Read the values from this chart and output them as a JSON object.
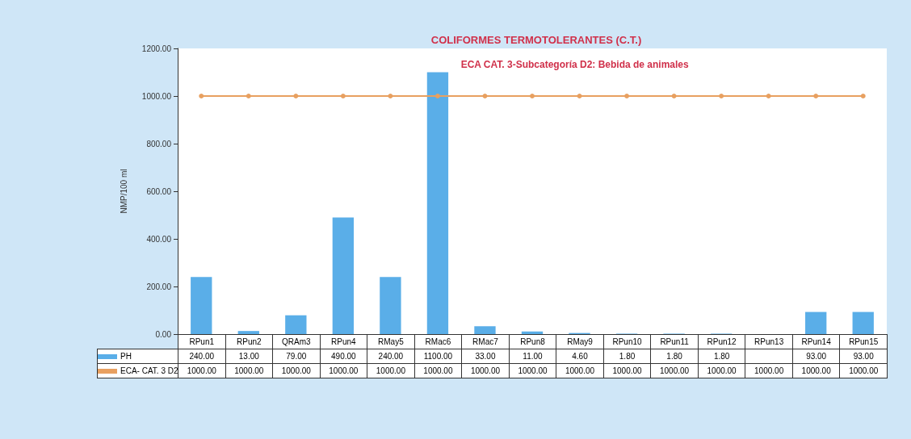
{
  "chart_data": {
    "type": "bar",
    "title": "COLIFORMES TERMOTOLERANTES (C.T.)",
    "ylabel": "NMP/100 ml",
    "categories": [
      "RPun1",
      "RPun2",
      "QRAm3",
      "RPun4",
      "RMay5",
      "RMac6",
      "RMac7",
      "RPun8",
      "RMay9",
      "RPun10",
      "RPun11",
      "RPun12",
      "RPun13",
      "RPun14",
      "RPun15"
    ],
    "series": [
      {
        "name": "PH",
        "color": "#5aaee8",
        "values": [
          240,
          13,
          79,
          490,
          240,
          1100,
          33,
          11,
          4.6,
          1.8,
          1.8,
          1.8,
          null,
          93,
          93
        ],
        "value_labels": [
          "240.00",
          "13.00",
          "79.00",
          "490.00",
          "240.00",
          "1100.00",
          "33.00",
          "11.00",
          "4.60",
          "1.80",
          "1.80",
          "1.80",
          null,
          "93.00",
          "93.00"
        ]
      },
      {
        "name": "ECA- CAT. 3 D2",
        "type": "line",
        "color": "#e8a060",
        "values": [
          1000,
          1000,
          1000,
          1000,
          1000,
          1000,
          1000,
          1000,
          1000,
          1000,
          1000,
          1000,
          1000,
          1000,
          1000
        ],
        "value_labels": [
          "1000.00",
          "1000.00",
          "1000.00",
          "1000.00",
          "1000.00",
          "1000.00",
          "1000.00",
          "1000.00",
          "1000.00",
          "1000.00",
          "1000.00",
          "1000.00",
          "1000.00",
          "1000.00",
          "1000.00"
        ]
      }
    ],
    "ylim": [
      0,
      1200
    ],
    "yticks": [
      {
        "value": 0,
        "label": "0.00"
      },
      {
        "value": 200,
        "label": "200.00"
      },
      {
        "value": 400,
        "label": "400.00"
      },
      {
        "value": 600,
        "label": "600.00"
      },
      {
        "value": 800,
        "label": "800.00"
      },
      {
        "value": 1000,
        "label": "1000.00"
      },
      {
        "value": 1200,
        "label": "1200.00"
      }
    ],
    "annotations": [
      "ECA CAT. 3-Subcategoría D2: Bebida de animales"
    ],
    "grid": false,
    "legend": "bottom left",
    "marker": "circle"
  }
}
